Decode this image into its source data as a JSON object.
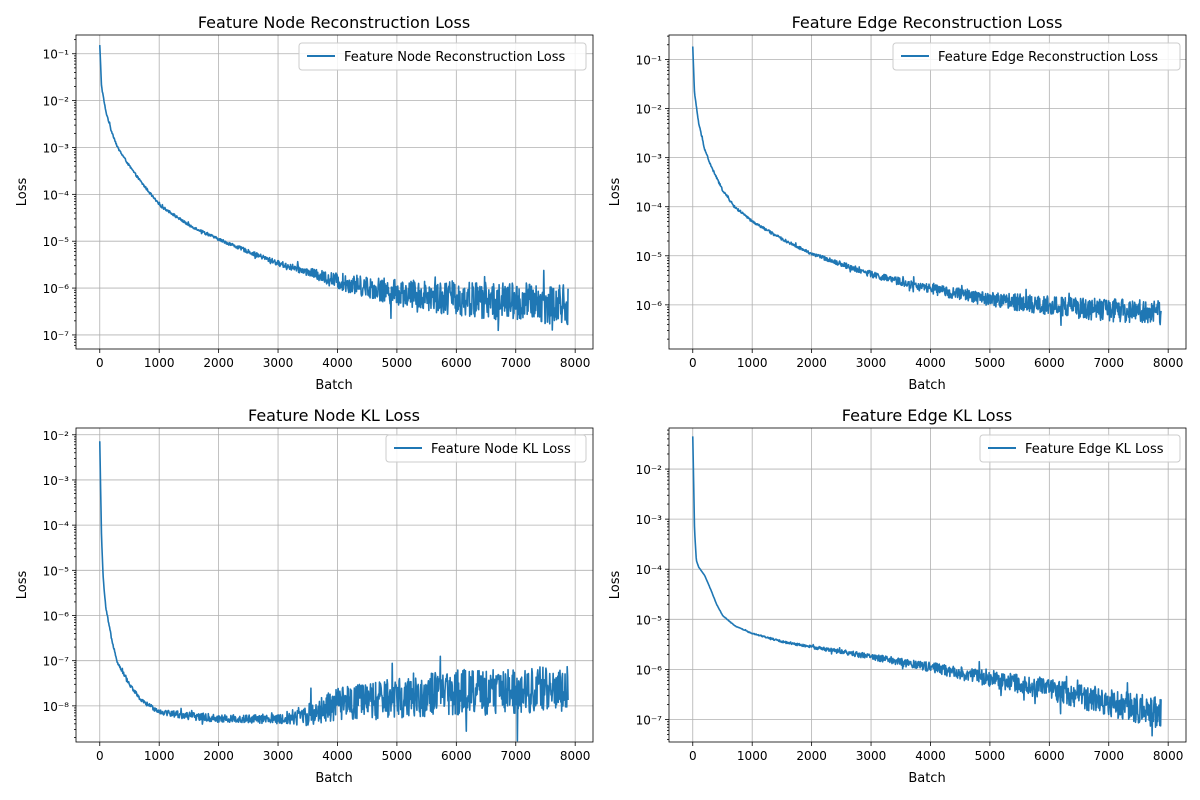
{
  "figure": {
    "background": "#ffffff"
  },
  "chart_data": [
    {
      "type": "line",
      "title": "Feature Node Reconstruction Loss",
      "xlabel": "Batch",
      "ylabel": "Loss",
      "yscale": "log",
      "xlim": [
        -400,
        8300
      ],
      "ylim_exp": [
        -7.3,
        -0.6
      ],
      "xticks": [
        0,
        1000,
        2000,
        3000,
        4000,
        5000,
        6000,
        7000,
        8000
      ],
      "yticks_exp": [
        -7,
        -6,
        -5,
        -4,
        -3,
        -2,
        -1
      ],
      "grid": true,
      "legend_loc": "upper right",
      "series": [
        {
          "name": "Feature Node Reconstruction Loss",
          "color": "#1f77b4",
          "x_range": [
            0,
            7880
          ],
          "trend": [
            [
              0,
              0.15
            ],
            [
              30,
              0.02
            ],
            [
              100,
              0.006
            ],
            [
              200,
              0.0022
            ],
            [
              300,
              0.001
            ],
            [
              500,
              0.0004
            ],
            [
              700,
              0.00018
            ],
            [
              1000,
              6e-05
            ],
            [
              1500,
              2.2e-05
            ],
            [
              2000,
              1.1e-05
            ],
            [
              2500,
              6e-06
            ],
            [
              3000,
              3.4e-06
            ],
            [
              3500,
              2.2e-06
            ],
            [
              4000,
              1.4e-06
            ],
            [
              5000,
              8e-07
            ],
            [
              6000,
              6e-07
            ],
            [
              7000,
              5e-07
            ],
            [
              7880,
              4.5e-07
            ]
          ],
          "noise": [
            [
              0,
              0.02
            ],
            [
              2000,
              0.03
            ],
            [
              2800,
              0.05
            ],
            [
              3500,
              0.08
            ],
            [
              4000,
              0.18
            ],
            [
              5000,
              0.28
            ],
            [
              6000,
              0.38
            ],
            [
              7000,
              0.42
            ],
            [
              7880,
              0.45
            ]
          ]
        }
      ]
    },
    {
      "type": "line",
      "title": "Feature Edge Reconstruction Loss",
      "xlabel": "Batch",
      "ylabel": "Loss",
      "yscale": "log",
      "xlim": [
        -400,
        8300
      ],
      "ylim_exp": [
        -6.9,
        -0.5
      ],
      "xticks": [
        0,
        1000,
        2000,
        3000,
        4000,
        5000,
        6000,
        7000,
        8000
      ],
      "yticks_exp": [
        -6,
        -5,
        -4,
        -3,
        -2,
        -1
      ],
      "grid": true,
      "legend_loc": "upper right",
      "series": [
        {
          "name": "Feature Edge Reconstruction Loss",
          "color": "#1f77b4",
          "x_range": [
            0,
            7880
          ],
          "trend": [
            [
              0,
              0.18
            ],
            [
              30,
              0.02
            ],
            [
              100,
              0.005
            ],
            [
              200,
              0.0015
            ],
            [
              300,
              0.0007
            ],
            [
              500,
              0.00022
            ],
            [
              700,
              0.0001
            ],
            [
              1000,
              5e-05
            ],
            [
              1500,
              2.2e-05
            ],
            [
              2000,
              1.1e-05
            ],
            [
              2500,
              6.8e-06
            ],
            [
              3000,
              4.2e-06
            ],
            [
              3500,
              2.9e-06
            ],
            [
              4000,
              2.1e-06
            ],
            [
              5000,
              1.3e-06
            ],
            [
              6000,
              9.5e-07
            ],
            [
              7000,
              7.8e-07
            ],
            [
              7880,
              7e-07
            ]
          ],
          "noise": [
            [
              0,
              0.02
            ],
            [
              2000,
              0.03
            ],
            [
              2500,
              0.05
            ],
            [
              3500,
              0.08
            ],
            [
              4500,
              0.12
            ],
            [
              5500,
              0.18
            ],
            [
              6500,
              0.22
            ],
            [
              7880,
              0.25
            ]
          ]
        }
      ]
    },
    {
      "type": "line",
      "title": "Feature Node KL Loss",
      "xlabel": "Batch",
      "ylabel": "Loss",
      "yscale": "log",
      "xlim": [
        -400,
        8300
      ],
      "ylim_exp": [
        -8.8,
        -1.85
      ],
      "xticks": [
        0,
        1000,
        2000,
        3000,
        4000,
        5000,
        6000,
        7000,
        8000
      ],
      "yticks_exp": [
        -8,
        -7,
        -6,
        -5,
        -4,
        -3,
        -2
      ],
      "grid": true,
      "legend_loc": "upper right",
      "series": [
        {
          "name": "Feature Node KL Loss",
          "color": "#1f77b4",
          "x_range": [
            0,
            7880
          ],
          "trend": [
            [
              0,
              0.007
            ],
            [
              30,
              5e-05
            ],
            [
              60,
              6e-06
            ],
            [
              100,
              1.5e-06
            ],
            [
              200,
              3e-07
            ],
            [
              300,
              9e-08
            ],
            [
              500,
              3e-08
            ],
            [
              700,
              1.3e-08
            ],
            [
              1000,
              7.5e-09
            ],
            [
              1500,
              6e-09
            ],
            [
              2000,
              5.2e-09
            ],
            [
              3000,
              5e-09
            ],
            [
              3500,
              6.5e-09
            ],
            [
              4000,
              1.1e-08
            ],
            [
              5000,
              1.5e-08
            ],
            [
              6000,
              2e-08
            ],
            [
              7000,
              2.2e-08
            ],
            [
              7880,
              2.4e-08
            ]
          ],
          "noise": [
            [
              0,
              0.02
            ],
            [
              900,
              0.05
            ],
            [
              1500,
              0.09
            ],
            [
              3000,
              0.1
            ],
            [
              3500,
              0.25
            ],
            [
              4000,
              0.35
            ],
            [
              5000,
              0.45
            ],
            [
              6000,
              0.5
            ],
            [
              7880,
              0.52
            ]
          ]
        }
      ]
    },
    {
      "type": "line",
      "title": "Feature Edge KL Loss",
      "xlabel": "Batch",
      "ylabel": "Loss",
      "yscale": "log",
      "xlim": [
        -400,
        8300
      ],
      "ylim_exp": [
        -7.45,
        -1.18
      ],
      "xticks": [
        0,
        1000,
        2000,
        3000,
        4000,
        5000,
        6000,
        7000,
        8000
      ],
      "yticks_exp": [
        -7,
        -6,
        -5,
        -4,
        -3,
        -2
      ],
      "grid": true,
      "legend_loc": "upper right",
      "series": [
        {
          "name": "Feature Edge KL Loss",
          "color": "#1f77b4",
          "x_range": [
            0,
            7880
          ],
          "trend": [
            [
              0,
              0.045
            ],
            [
              30,
              0.0006
            ],
            [
              60,
              0.00015
            ],
            [
              100,
              0.00011
            ],
            [
              200,
              7.5e-05
            ],
            [
              300,
              4e-05
            ],
            [
              400,
              2e-05
            ],
            [
              500,
              1.2e-05
            ],
            [
              700,
              7.5e-06
            ],
            [
              1000,
              5.2e-06
            ],
            [
              1500,
              3.6e-06
            ],
            [
              2000,
              2.8e-06
            ],
            [
              3000,
              1.8e-06
            ],
            [
              4000,
              1.1e-06
            ],
            [
              5000,
              6.5e-07
            ],
            [
              6000,
              4e-07
            ],
            [
              7000,
              2.2e-07
            ],
            [
              7880,
              1.3e-07
            ]
          ],
          "noise": [
            [
              0,
              0.0
            ],
            [
              1000,
              0.01
            ],
            [
              2000,
              0.03
            ],
            [
              3000,
              0.06
            ],
            [
              4000,
              0.1
            ],
            [
              5000,
              0.16
            ],
            [
              6000,
              0.22
            ],
            [
              7000,
              0.28
            ],
            [
              7880,
              0.32
            ]
          ]
        }
      ]
    }
  ]
}
